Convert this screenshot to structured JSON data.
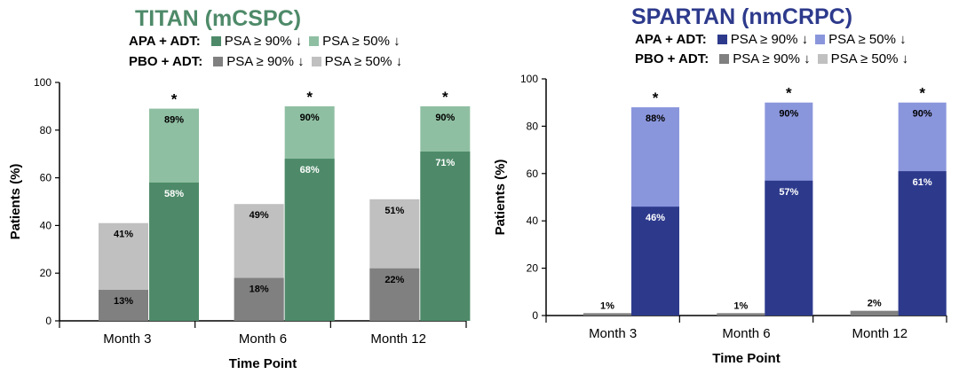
{
  "chart_data": [
    {
      "type": "bar",
      "title": "TITAN (mCSPC)",
      "title_color": "#4e8a69",
      "legend": {
        "rows": [
          {
            "group": "APA + ADT:",
            "entries": [
              {
                "label": "PSA ≥ 90% ↓",
                "color": "#4e8a69"
              },
              {
                "label": "PSA ≥ 50% ↓",
                "color": "#8fbfa2"
              }
            ]
          },
          {
            "group": "PBO + ADT:",
            "entries": [
              {
                "label": "PSA ≥ 90% ↓",
                "color": "#808080"
              },
              {
                "label": "PSA ≥ 50% ↓",
                "color": "#c0c0c0"
              }
            ]
          }
        ]
      },
      "categories": [
        "Month 3",
        "Month 6",
        "Month 12"
      ],
      "series": [
        {
          "name": "PBO + ADT PSA ≥ 90% ↓",
          "values": [
            13,
            18,
            22
          ],
          "labels": [
            "13%",
            "18%",
            "22%"
          ],
          "color": "#808080",
          "label_color": "#000000"
        },
        {
          "name": "PBO + ADT PSA ≥ 50% ↓",
          "values": [
            41,
            49,
            51
          ],
          "labels": [
            "41%",
            "49%",
            "51%"
          ],
          "color": "#c0c0c0",
          "label_color": "#000000"
        },
        {
          "name": "APA + ADT PSA ≥ 90% ↓",
          "values": [
            58,
            68,
            71
          ],
          "labels": [
            "58%",
            "68%",
            "71%"
          ],
          "color": "#4e8a69",
          "label_color": "#ffffff"
        },
        {
          "name": "APA + ADT PSA ≥ 50% ↓",
          "values": [
            89,
            90,
            90
          ],
          "labels": [
            "89%",
            "90%",
            "90%"
          ],
          "color": "#8fbfa2",
          "label_color": "#000000"
        }
      ],
      "significance_marker": "*",
      "xlabel": "Time Point",
      "ylabel": "Patients (%)",
      "ylim": [
        0,
        100
      ],
      "yticks": [
        0,
        20,
        40,
        60,
        80,
        100
      ]
    },
    {
      "type": "bar",
      "title": "SPARTAN (nmCRPC)",
      "title_color": "#2d3a8c",
      "legend": {
        "rows": [
          {
            "group": "APA + ADT:",
            "entries": [
              {
                "label": "PSA ≥ 90% ↓",
                "color": "#2d3a8c"
              },
              {
                "label": "PSA ≥ 50% ↓",
                "color": "#8a96dc"
              }
            ]
          },
          {
            "group": "PBO + ADT:",
            "entries": [
              {
                "label": "PSA ≥ 90% ↓",
                "color": "#808080"
              },
              {
                "label": "PSA ≥ 50% ↓",
                "color": "#c0c0c0"
              }
            ]
          }
        ]
      },
      "categories": [
        "Month 3",
        "Month 6",
        "Month 12"
      ],
      "series": [
        {
          "name": "PBO + ADT PSA ≥ 90% ↓",
          "values": [
            1,
            1,
            2
          ],
          "labels": [
            "1%",
            "1%",
            "2%"
          ],
          "color": "#808080",
          "label_color": "#000000"
        },
        {
          "name": "APA + ADT PSA ≥ 90% ↓",
          "values": [
            46,
            57,
            61
          ],
          "labels": [
            "46%",
            "57%",
            "61%"
          ],
          "color": "#2d3a8c",
          "label_color": "#ffffff"
        },
        {
          "name": "APA + ADT PSA ≥ 50% ↓",
          "values": [
            88,
            90,
            90
          ],
          "labels": [
            "88%",
            "90%",
            "90%"
          ],
          "color": "#8a96dc",
          "label_color": "#000000"
        }
      ],
      "significance_marker": "*",
      "xlabel": "Time Point",
      "ylabel": "Patients (%)",
      "ylim": [
        0,
        100
      ],
      "yticks": [
        0,
        20,
        40,
        60,
        80,
        100
      ]
    }
  ]
}
